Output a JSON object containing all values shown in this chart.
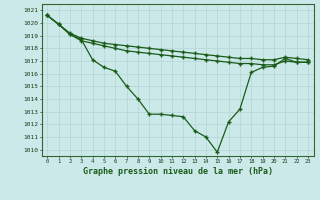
{
  "x": [
    0,
    1,
    2,
    3,
    4,
    5,
    6,
    7,
    8,
    9,
    10,
    11,
    12,
    13,
    14,
    15,
    16,
    17,
    18,
    19,
    20,
    21,
    22,
    23
  ],
  "series1": [
    1020.6,
    1019.9,
    1019.2,
    1018.8,
    1018.6,
    1018.4,
    1018.3,
    1018.2,
    1018.1,
    1018.0,
    1017.9,
    1017.8,
    1017.7,
    1017.6,
    1017.5,
    1017.4,
    1017.3,
    1017.2,
    1017.2,
    1017.1,
    1017.1,
    1017.3,
    1017.2,
    1017.1
  ],
  "series2": [
    1020.6,
    1019.9,
    1019.1,
    1018.6,
    1018.4,
    1018.2,
    1018.0,
    1017.8,
    1017.7,
    1017.6,
    1017.5,
    1017.4,
    1017.3,
    1017.2,
    1017.1,
    1017.0,
    1016.9,
    1016.8,
    1016.8,
    1016.7,
    1016.7,
    1017.0,
    1016.9,
    1016.9
  ],
  "series3": [
    1020.6,
    1019.9,
    1019.1,
    1018.7,
    1017.1,
    1016.5,
    1016.2,
    1015.0,
    1014.0,
    1012.8,
    1012.8,
    1012.7,
    1012.6,
    1011.5,
    1011.0,
    1009.8,
    1012.2,
    1013.2,
    1016.1,
    1016.5,
    1016.6,
    1017.2,
    1016.9,
    1016.9
  ],
  "ylim": [
    1009.5,
    1021.5
  ],
  "yticks": [
    1010,
    1011,
    1012,
    1013,
    1014,
    1015,
    1016,
    1017,
    1018,
    1019,
    1020,
    1021
  ],
  "xlabel": "Graphe pression niveau de la mer (hPa)",
  "line_color": "#1a5c1a",
  "bg_color": "#cce9e9",
  "grid_color": "#c0dada"
}
